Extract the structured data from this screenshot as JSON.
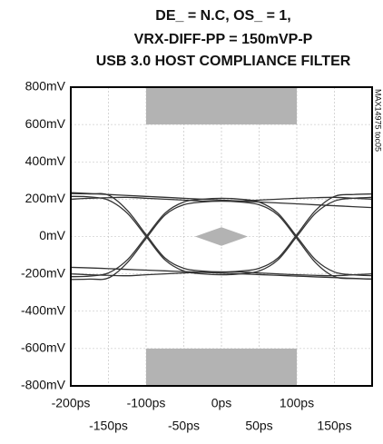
{
  "chart_data": {
    "type": "eye",
    "title": [
      "DE_ = N.C, OS_ = 1,",
      "VRX-DIFF-PP = 150mVP-P",
      "USB 3.0 HOST COMPLIANCE FILTER"
    ],
    "annotation": "MAX14975 toc05",
    "xlim": [
      -200,
      200
    ],
    "ylim": [
      -800,
      800
    ],
    "xticks": [
      {
        "value": -200,
        "label": "-200ps"
      },
      {
        "value": -150,
        "label": "-150ps"
      },
      {
        "value": -100,
        "label": "-100ps"
      },
      {
        "value": -50,
        "label": "-50ps"
      },
      {
        "value": 0,
        "label": "0ps"
      },
      {
        "value": 50,
        "label": "50ps"
      },
      {
        "value": 100,
        "label": "100ps"
      },
      {
        "value": 150,
        "label": "150ps"
      }
    ],
    "yticks": [
      {
        "value": -800,
        "label": "-800mV"
      },
      {
        "value": -600,
        "label": "-600mV"
      },
      {
        "value": -400,
        "label": "-400mV"
      },
      {
        "value": -200,
        "label": "-200mV"
      },
      {
        "value": 0,
        "label": "0mV"
      },
      {
        "value": 200,
        "label": "200mV"
      },
      {
        "value": 400,
        "label": "400mV"
      },
      {
        "value": 600,
        "label": "600mV"
      },
      {
        "value": 800,
        "label": "800mV"
      }
    ],
    "grid": true,
    "mask_color": "#b3b3b3",
    "masks": [
      {
        "x": [
          -100,
          100,
          100,
          -100
        ],
        "y": [
          800,
          800,
          600,
          600
        ]
      },
      {
        "x": [
          -100,
          100,
          100,
          -100
        ],
        "y": [
          -600,
          -600,
          -800,
          -800
        ]
      },
      {
        "x": [
          -35,
          0,
          35,
          0
        ],
        "y": [
          0,
          50,
          0,
          -50
        ]
      }
    ],
    "trace_color": "#333333",
    "x": [
      -200,
      -175,
      -150,
      -125,
      -100,
      -75,
      -50,
      -25,
      0,
      25,
      50,
      75,
      100,
      125,
      150,
      175,
      200
    ],
    "series": [
      {
        "values": [
          215,
          212,
          195,
          125,
          0,
          -125,
          -185,
          -200,
          -205,
          -200,
          -185,
          -125,
          0,
          125,
          190,
          205,
          210
        ]
      },
      {
        "values": [
          -215,
          -212,
          -195,
          -125,
          0,
          125,
          185,
          200,
          205,
          200,
          185,
          125,
          0,
          -125,
          -190,
          -205,
          -210
        ]
      },
      {
        "values": [
          230,
          228,
          222,
          140,
          10,
          -115,
          -170,
          -185,
          -190,
          -185,
          -170,
          -115,
          10,
          140,
          215,
          225,
          228
        ]
      },
      {
        "values": [
          -230,
          -228,
          -222,
          -140,
          -10,
          115,
          170,
          185,
          190,
          185,
          170,
          115,
          -10,
          -140,
          -215,
          -225,
          -228
        ]
      },
      {
        "values": [
          235,
          230,
          225,
          220,
          215,
          210,
          205,
          200,
          195,
          190,
          185,
          180,
          175,
          170,
          165,
          160,
          155
        ]
      },
      {
        "values": [
          -165,
          -168,
          -172,
          -176,
          -180,
          -184,
          -188,
          -192,
          -196,
          -200,
          -204,
          -208,
          -212,
          -216,
          -220,
          -224,
          -228
        ]
      },
      {
        "values": [
          200,
          205,
          208,
          210,
          205,
          200,
          195,
          190,
          190,
          190,
          195,
          200,
          205,
          208,
          210,
          205,
          200
        ]
      },
      {
        "values": [
          -200,
          -205,
          -208,
          -210,
          -205,
          -200,
          -195,
          -190,
          -190,
          -190,
          -195,
          -200,
          -205,
          -208,
          -210,
          -205,
          -200
        ]
      }
    ]
  }
}
